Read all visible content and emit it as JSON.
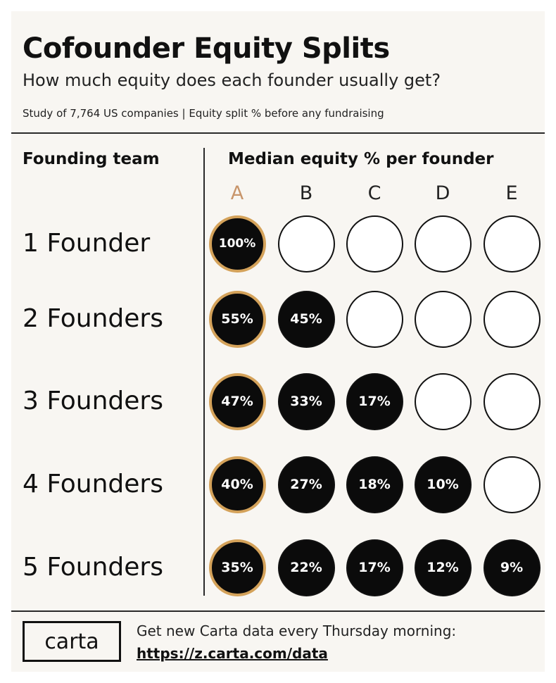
{
  "header": {
    "title": "Cofounder Equity Splits",
    "subtitle": "How much equity does each founder usually get?",
    "note": "Study of 7,764 US companies | Equity split % before any fundraising"
  },
  "columns": {
    "left_heading": "Founding team",
    "right_heading": "Median equity % per founder"
  },
  "colors": {
    "lead_ring": "#d4a25a",
    "lead_letter": "#c8956b",
    "filled": "#0b0b0b",
    "empty": "#ffffff"
  },
  "chart_data": {
    "type": "table",
    "title": "Cofounder Equity Splits",
    "categories": [
      "A",
      "B",
      "C",
      "D",
      "E"
    ],
    "rows": [
      {
        "label": "1 Founder",
        "values": [
          100,
          null,
          null,
          null,
          null
        ],
        "display": [
          "100%",
          "",
          "",
          "",
          ""
        ]
      },
      {
        "label": "2 Founders",
        "values": [
          55,
          45,
          null,
          null,
          null
        ],
        "display": [
          "55%",
          "45%",
          "",
          "",
          ""
        ]
      },
      {
        "label": "3 Founders",
        "values": [
          47,
          33,
          17,
          null,
          null
        ],
        "display": [
          "47%",
          "33%",
          "17%",
          "",
          ""
        ]
      },
      {
        "label": "4 Founders",
        "values": [
          40,
          27,
          18,
          10,
          null
        ],
        "display": [
          "40%",
          "27%",
          "18%",
          "10%",
          ""
        ]
      },
      {
        "label": "5 Founders",
        "values": [
          35,
          22,
          17,
          12,
          9
        ],
        "display": [
          "35%",
          "22%",
          "17%",
          "12%",
          "9%"
        ]
      }
    ]
  },
  "footer": {
    "logo_text": "carta",
    "text": "Get new Carta data every Thursday morning:",
    "link": "https://z.carta.com/data"
  }
}
